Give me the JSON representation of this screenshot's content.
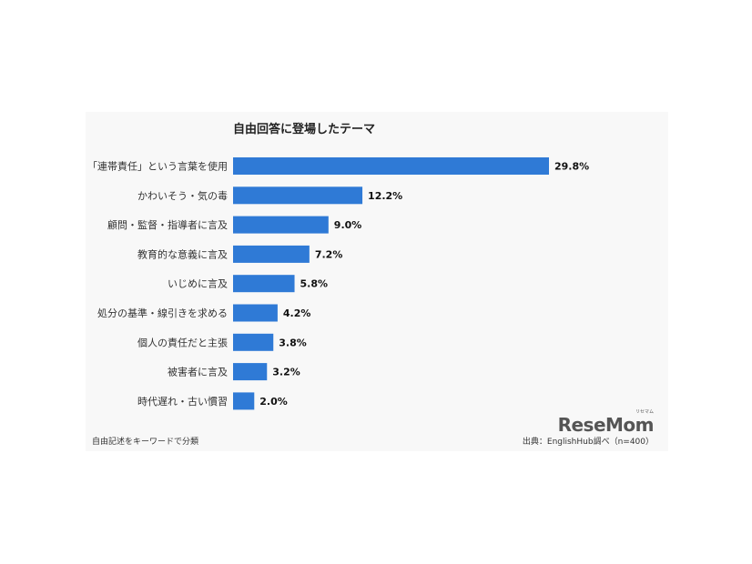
{
  "chart_data": {
    "type": "bar",
    "orientation": "horizontal",
    "title": "自由回答に登場したテーマ",
    "categories": [
      "「連帯責任」という言葉を使用",
      "かわいそう・気の毒",
      "顧問・監督・指導者に言及",
      "教育的な意義に言及",
      "いじめに言及",
      "処分の基準・線引きを求める",
      "個人の責任だと主張",
      "被害者に言及",
      "時代遅れ・古い慣習"
    ],
    "values": [
      29.8,
      12.2,
      9.0,
      7.2,
      5.8,
      4.2,
      3.8,
      3.2,
      2.0
    ],
    "value_labels": [
      "29.8%",
      "12.2%",
      "9.0%",
      "7.2%",
      "5.8%",
      "4.2%",
      "3.8%",
      "3.2%",
      "2.0%"
    ],
    "bar_color": "#2f7ad6",
    "grid": false,
    "legend": "none"
  },
  "footnote": "自由記述をキーワードで分類",
  "source": "出典：EnglishHub調べ（n=400）",
  "logo": {
    "text": "ReseMom",
    "ruby": "リセマム"
  }
}
